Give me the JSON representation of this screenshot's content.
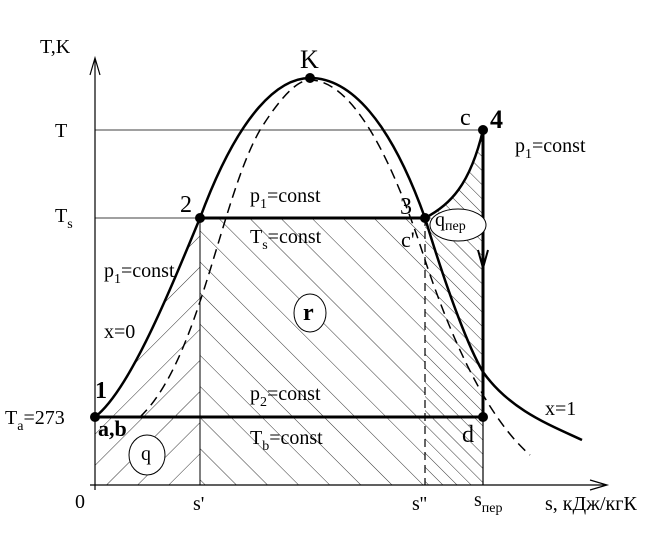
{
  "axes": {
    "y_label": "T,K",
    "x_label": "s, кДж/кгК",
    "origin": "0"
  },
  "y_ticks": [
    {
      "main": "T"
    },
    {
      "main": "T",
      "sub": "s"
    },
    {
      "main": "T",
      "sub": "a",
      "rest": "=273"
    }
  ],
  "x_ticks": [
    {
      "main": "s'"
    },
    {
      "main": "s''"
    },
    {
      "main": "s",
      "sub": "пер"
    }
  ],
  "points": {
    "K": "K",
    "c": "c",
    "four": "4",
    "two": "2",
    "three": "3",
    "c_prime": "c'",
    "one": "1",
    "ab": "a,b",
    "d": "d"
  },
  "annotations": {
    "p1_right": {
      "main": "p",
      "sub": "1",
      "rest": "=const"
    },
    "p1_top": {
      "main": "p",
      "sub": "1",
      "rest": "=const"
    },
    "ts_const": {
      "main": "T",
      "sub": "s",
      "rest": "=const"
    },
    "p1_left": {
      "main": "p",
      "sub": "1",
      "rest": "=const"
    },
    "x0": "x=0",
    "r": "r",
    "p2": {
      "main": "p",
      "sub": "2",
      "rest": "=const"
    },
    "tb_const": {
      "main": "T",
      "sub": "b",
      "rest": "=const"
    },
    "q": "q",
    "q_per": {
      "main": "q",
      "sub": "пер"
    },
    "x1": "x=1"
  }
}
